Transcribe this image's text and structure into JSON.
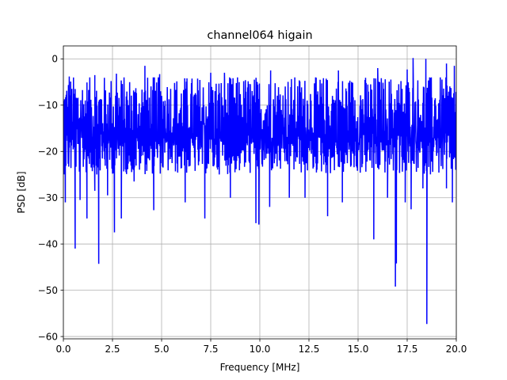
{
  "chart_data": {
    "type": "line",
    "title": "channel064 higain",
    "xlabel": "Frequency [MHz]",
    "ylabel": "PSD [dB]",
    "xlim": [
      0,
      20
    ],
    "ylim": [
      -60.5,
      2.8
    ],
    "xticks": [
      0,
      2.5,
      5,
      7.5,
      10,
      12.5,
      15,
      17.5,
      20
    ],
    "xtick_labels": [
      "0.0",
      "2.5",
      "5.0",
      "7.5",
      "10.0",
      "12.5",
      "15.0",
      "17.5",
      "20.0"
    ],
    "yticks": [
      0,
      -10,
      -20,
      -30,
      -40,
      -50,
      -60
    ],
    "ytick_labels": [
      "0",
      "−10",
      "−20",
      "−30",
      "−40",
      "−50",
      "−60"
    ],
    "grid": true,
    "series": [
      {
        "color": "#0000ff",
        "noise": {
          "mean": -14,
          "typical_min": -24,
          "typical_max": -4,
          "points": 1400
        },
        "dips": [
          {
            "x": 0.1,
            "y": -31
          },
          {
            "x": 0.6,
            "y": -41
          },
          {
            "x": 0.85,
            "y": -30.5
          },
          {
            "x": 1.2,
            "y": -34.5
          },
          {
            "x": 1.6,
            "y": -28.5
          },
          {
            "x": 1.8,
            "y": -44.3
          },
          {
            "x": 2.25,
            "y": -29.5
          },
          {
            "x": 2.6,
            "y": -37.5
          },
          {
            "x": 2.95,
            "y": -34.5
          },
          {
            "x": 3.6,
            "y": -26.5
          },
          {
            "x": 4.6,
            "y": -32.7
          },
          {
            "x": 6.2,
            "y": -31
          },
          {
            "x": 7.2,
            "y": -34.5
          },
          {
            "x": 8.5,
            "y": -30
          },
          {
            "x": 9.8,
            "y": -35.5
          },
          {
            "x": 9.95,
            "y": -35.8
          },
          {
            "x": 10.5,
            "y": -32
          },
          {
            "x": 11.5,
            "y": -30
          },
          {
            "x": 12.3,
            "y": -30
          },
          {
            "x": 13.45,
            "y": -34
          },
          {
            "x": 14.2,
            "y": -31
          },
          {
            "x": 15.8,
            "y": -39
          },
          {
            "x": 16.5,
            "y": -30
          },
          {
            "x": 16.9,
            "y": -49.2
          },
          {
            "x": 16.95,
            "y": -44.2
          },
          {
            "x": 17.4,
            "y": -31
          },
          {
            "x": 17.7,
            "y": -32.5
          },
          {
            "x": 18.3,
            "y": -28
          },
          {
            "x": 18.5,
            "y": -57.3
          },
          {
            "x": 19.5,
            "y": -28
          },
          {
            "x": 19.8,
            "y": -31
          }
        ],
        "peaks": [
          {
            "x": 0.3,
            "y": -3.8
          },
          {
            "x": 1.6,
            "y": -3.5
          },
          {
            "x": 2.7,
            "y": -3.2
          },
          {
            "x": 4.15,
            "y": -1.5
          },
          {
            "x": 4.9,
            "y": -3.3
          },
          {
            "x": 7.5,
            "y": -3
          },
          {
            "x": 8.2,
            "y": -3
          },
          {
            "x": 10.55,
            "y": -2.5
          },
          {
            "x": 14,
            "y": -2.5
          },
          {
            "x": 16,
            "y": -2
          },
          {
            "x": 17.5,
            "y": -2.3
          },
          {
            "x": 17.8,
            "y": 0.2
          },
          {
            "x": 18.45,
            "y": 0
          },
          {
            "x": 19.5,
            "y": -1
          },
          {
            "x": 19.9,
            "y": -1.5
          }
        ]
      }
    ]
  }
}
